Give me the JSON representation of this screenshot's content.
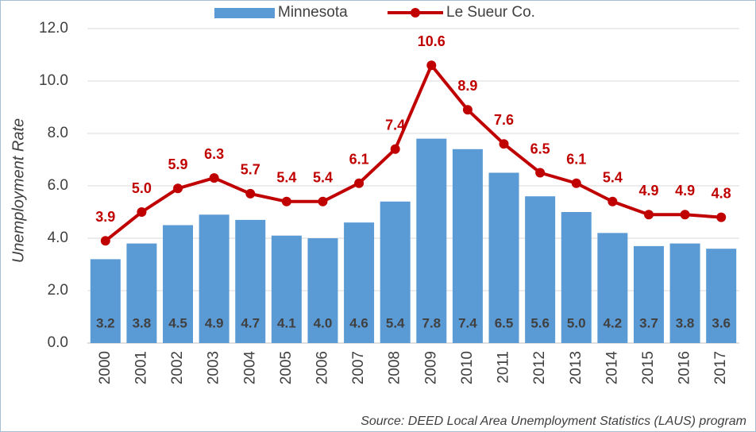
{
  "chart_data": {
    "type": "bar",
    "y_label": "Unemployment Rate",
    "source": "Source: DEED Local Area Unemployment Statistics (LAUS) program",
    "categories": [
      "2000",
      "2001",
      "2002",
      "2003",
      "2004",
      "2005",
      "2006",
      "2007",
      "2008",
      "2009",
      "2010",
      "2011",
      "2012",
      "2013",
      "2014",
      "2015",
      "2016",
      "2017"
    ],
    "series": [
      {
        "name": "Minnesota",
        "type": "bar",
        "color": "#5b9bd5",
        "values": [
          3.2,
          3.8,
          4.5,
          4.9,
          4.7,
          4.1,
          4.0,
          4.6,
          5.4,
          7.8,
          7.4,
          6.5,
          5.6,
          5.0,
          4.2,
          3.7,
          3.8,
          3.6
        ],
        "value_labels": [
          "3.2",
          "3.8",
          "4.5",
          "4.9",
          "4.7",
          "4.1",
          "4.0",
          "4.6",
          "5.4",
          "7.8",
          "7.4",
          "6.5",
          "5.6",
          "5.0",
          "4.2",
          "3.7",
          "3.8",
          "3.6"
        ]
      },
      {
        "name": "Le Sueur Co.",
        "type": "line",
        "color": "#c00000",
        "values": [
          3.9,
          5.0,
          5.9,
          6.3,
          5.7,
          5.4,
          5.4,
          6.1,
          7.4,
          10.6,
          8.9,
          7.6,
          6.5,
          6.1,
          5.4,
          4.9,
          4.9,
          4.8
        ],
        "value_labels": [
          "3.9",
          "5.0",
          "5.9",
          "6.3",
          "5.7",
          "5.4",
          "5.4",
          "6.1",
          "7.4",
          "10.6",
          "8.9",
          "7.6",
          "6.5",
          "6.1",
          "5.4",
          "4.9",
          "4.9",
          "4.8"
        ]
      }
    ],
    "ylim": [
      0,
      12
    ],
    "yticks": [
      {
        "value": 0,
        "label": "0.0"
      },
      {
        "value": 2,
        "label": "2.0"
      },
      {
        "value": 4,
        "label": "4.0"
      },
      {
        "value": 6,
        "label": "6.0"
      },
      {
        "value": 8,
        "label": "8.0"
      },
      {
        "value": 10,
        "label": "10.0"
      },
      {
        "value": 12,
        "label": "12.0"
      }
    ],
    "grid": true
  }
}
